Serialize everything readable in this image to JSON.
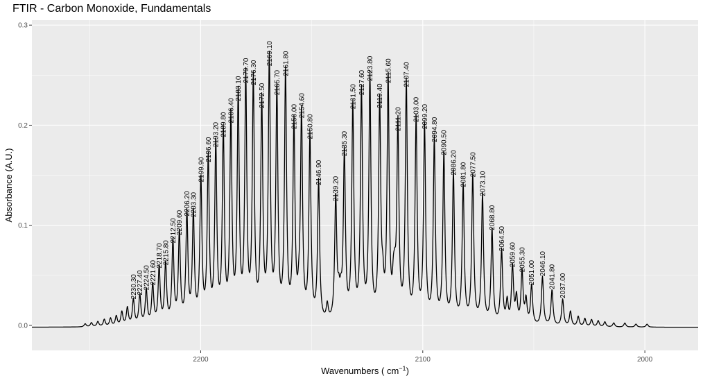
{
  "chart_data": {
    "type": "line",
    "title": "FTIR - Carbon Monoxide, Fundamentals",
    "xlabel_main": "Wavenumbers ( cm",
    "xlabel_sup": "−1",
    "xlabel_close": ")",
    "ylabel": "Absorbance (A.U.)",
    "x_reversed": true,
    "xlim": [
      1976,
      2276
    ],
    "ylim": [
      -0.025,
      0.305
    ],
    "x_ticks": [
      2200,
      2100,
      2000
    ],
    "x_tick_labels": [
      "2200",
      "2100",
      "2000"
    ],
    "y_ticks": [
      0.0,
      0.1,
      0.2,
      0.3
    ],
    "y_tick_labels": [
      "0.0",
      "0.1",
      "0.2",
      "0.3"
    ],
    "grid": true,
    "colors": {
      "panel": "#ebebeb",
      "grid": "#ffffff",
      "line": "#000000"
    },
    "baseline": -0.002,
    "peaks": [
      {
        "x": 2230.3,
        "label": "2230.30",
        "y": 0.024
      },
      {
        "x": 2227.4,
        "label": "2227.40",
        "y": 0.028
      },
      {
        "x": 2224.5,
        "label": "2224.50",
        "y": 0.033
      },
      {
        "x": 2221.6,
        "label": "2221.60",
        "y": 0.038
      },
      {
        "x": 2218.7,
        "label": "2218.70",
        "y": 0.055
      },
      {
        "x": 2215.8,
        "label": "2215.80",
        "y": 0.058
      },
      {
        "x": 2212.5,
        "label": "2212.50",
        "y": 0.08
      },
      {
        "x": 2209.6,
        "label": "2209.60",
        "y": 0.088
      },
      {
        "x": 2206.2,
        "label": "2206.20",
        "y": 0.107
      },
      {
        "x": 2203.3,
        "label": "2203.30",
        "y": 0.106
      },
      {
        "x": 2199.9,
        "label": "2199.90",
        "y": 0.141
      },
      {
        "x": 2196.6,
        "label": "2196.60",
        "y": 0.161
      },
      {
        "x": 2193.2,
        "label": "2193.20",
        "y": 0.176
      },
      {
        "x": 2189.8,
        "label": "2189.80",
        "y": 0.186
      },
      {
        "x": 2186.4,
        "label": "2186.40",
        "y": 0.2
      },
      {
        "x": 2183.1,
        "label": "2183.10",
        "y": 0.222
      },
      {
        "x": 2179.7,
        "label": "2179.70",
        "y": 0.24
      },
      {
        "x": 2176.3,
        "label": "2176.30",
        "y": 0.238
      },
      {
        "x": 2172.5,
        "label": "2172.50",
        "y": 0.215
      },
      {
        "x": 2169.1,
        "label": "2169.10",
        "y": 0.257
      },
      {
        "x": 2165.7,
        "label": "2165.70",
        "y": 0.228
      },
      {
        "x": 2161.8,
        "label": "2161.80",
        "y": 0.247
      },
      {
        "x": 2158.0,
        "label": "2158.00",
        "y": 0.194
      },
      {
        "x": 2154.6,
        "label": "2154.60",
        "y": 0.205
      },
      {
        "x": 2150.8,
        "label": "2150.80",
        "y": 0.184
      },
      {
        "x": 2146.9,
        "label": "2146.90",
        "y": 0.138
      },
      {
        "x": 2139.2,
        "label": "2139.20",
        "y": 0.122
      },
      {
        "x": 2135.3,
        "label": "2135.30",
        "y": 0.167
      },
      {
        "x": 2131.5,
        "label": "2131.50",
        "y": 0.214
      },
      {
        "x": 2127.6,
        "label": "2127.60",
        "y": 0.228
      },
      {
        "x": 2123.8,
        "label": "2123.80",
        "y": 0.242
      },
      {
        "x": 2119.4,
        "label": "2119.40",
        "y": 0.215
      },
      {
        "x": 2115.6,
        "label": "2115.60",
        "y": 0.24
      },
      {
        "x": 2111.2,
        "label": "2111.20",
        "y": 0.192
      },
      {
        "x": 2107.4,
        "label": "2107.40",
        "y": 0.236
      },
      {
        "x": 2103.0,
        "label": "2103.00",
        "y": 0.201
      },
      {
        "x": 2099.2,
        "label": "2099.20",
        "y": 0.194
      },
      {
        "x": 2094.8,
        "label": "2094.80",
        "y": 0.181
      },
      {
        "x": 2090.5,
        "label": "2090.50",
        "y": 0.168
      },
      {
        "x": 2086.2,
        "label": "2086.20",
        "y": 0.148
      },
      {
        "x": 2081.8,
        "label": "2081.80",
        "y": 0.136
      },
      {
        "x": 2077.5,
        "label": "2077.50",
        "y": 0.146
      },
      {
        "x": 2073.1,
        "label": "2073.10",
        "y": 0.127
      },
      {
        "x": 2068.8,
        "label": "2068.80",
        "y": 0.093
      },
      {
        "x": 2064.5,
        "label": "2064.50",
        "y": 0.072
      },
      {
        "x": 2059.6,
        "label": "2059.60",
        "y": 0.056
      },
      {
        "x": 2055.3,
        "label": "2055.30",
        "y": 0.051
      },
      {
        "x": 2051.0,
        "label": "2051.00",
        "y": 0.038
      },
      {
        "x": 2046.1,
        "label": "2046.10",
        "y": 0.047
      },
      {
        "x": 2041.8,
        "label": "2041.80",
        "y": 0.034
      },
      {
        "x": 2037.0,
        "label": "2037.00",
        "y": 0.025
      }
    ],
    "minor_peaks": [
      {
        "x": 2252.0,
        "y": 0.001
      },
      {
        "x": 2249.2,
        "y": 0.002
      },
      {
        "x": 2246.3,
        "y": 0.003
      },
      {
        "x": 2243.4,
        "y": 0.005
      },
      {
        "x": 2240.6,
        "y": 0.006
      },
      {
        "x": 2238.0,
        "y": 0.008
      },
      {
        "x": 2235.5,
        "y": 0.012
      },
      {
        "x": 2233.0,
        "y": 0.016
      },
      {
        "x": 2143.0,
        "y": 0.014
      },
      {
        "x": 2137.8,
        "y": 0.018
      },
      {
        "x": 2136.9,
        "y": 0.016
      },
      {
        "x": 2118.0,
        "y": 0.025
      },
      {
        "x": 2113.2,
        "y": 0.026
      },
      {
        "x": 2112.6,
        "y": 0.024
      },
      {
        "x": 2155.8,
        "y": 0.012
      },
      {
        "x": 2062.0,
        "y": 0.02
      },
      {
        "x": 2057.8,
        "y": 0.024
      },
      {
        "x": 2053.5,
        "y": 0.022
      },
      {
        "x": 2033.5,
        "y": 0.013
      },
      {
        "x": 2030.0,
        "y": 0.008
      },
      {
        "x": 2027.0,
        "y": 0.006
      },
      {
        "x": 2024.0,
        "y": 0.005
      },
      {
        "x": 2021.0,
        "y": 0.004
      },
      {
        "x": 2018.0,
        "y": 0.003
      },
      {
        "x": 2014.0,
        "y": 0.002
      },
      {
        "x": 2009.0,
        "y": 0.002
      },
      {
        "x": 2004.0,
        "y": 0.001
      },
      {
        "x": 1999.0,
        "y": 0.001
      }
    ]
  }
}
